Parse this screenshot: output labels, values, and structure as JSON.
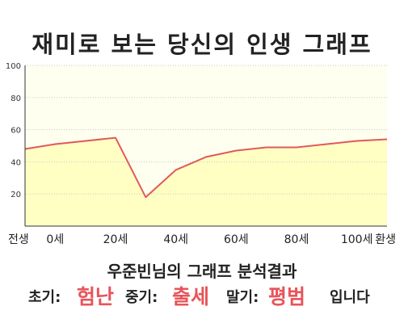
{
  "chart_data": {
    "type": "area",
    "title": "재미로 보는 당신의 인생 그래프",
    "x": [
      -10,
      0,
      20,
      30,
      40,
      50,
      60,
      70,
      80,
      90,
      100,
      110
    ],
    "values": [
      48,
      51,
      55,
      18,
      35,
      43,
      47,
      49,
      49,
      51,
      53,
      54
    ],
    "x_ticks": [
      {
        "x": -10,
        "label": "전생"
      },
      {
        "x": 0,
        "label": "0세"
      },
      {
        "x": 20,
        "label": "20세"
      },
      {
        "x": 40,
        "label": "40세"
      },
      {
        "x": 60,
        "label": "60세"
      },
      {
        "x": 80,
        "label": "80세"
      },
      {
        "x": 100,
        "label": "100세"
      },
      {
        "x": 110,
        "label": "환생"
      }
    ],
    "y_ticks": [
      "20",
      "40",
      "60",
      "80",
      "100"
    ],
    "xlim": [
      -10,
      110
    ],
    "ylim": [
      0,
      100
    ],
    "grid": true,
    "colors": {
      "line": "#e05a5a",
      "fill": "#ffffc4",
      "plot_bg": "#fffff0",
      "grid": "#c8c8c8"
    }
  },
  "summary": {
    "subtitle": "우준빈님의 그래프 분석결과",
    "early_label": "초기:",
    "early_value": "험난",
    "middle_label": "중기:",
    "middle_value": "출세",
    "late_label": "말기:",
    "late_value": "평범",
    "ending": "입니다"
  }
}
